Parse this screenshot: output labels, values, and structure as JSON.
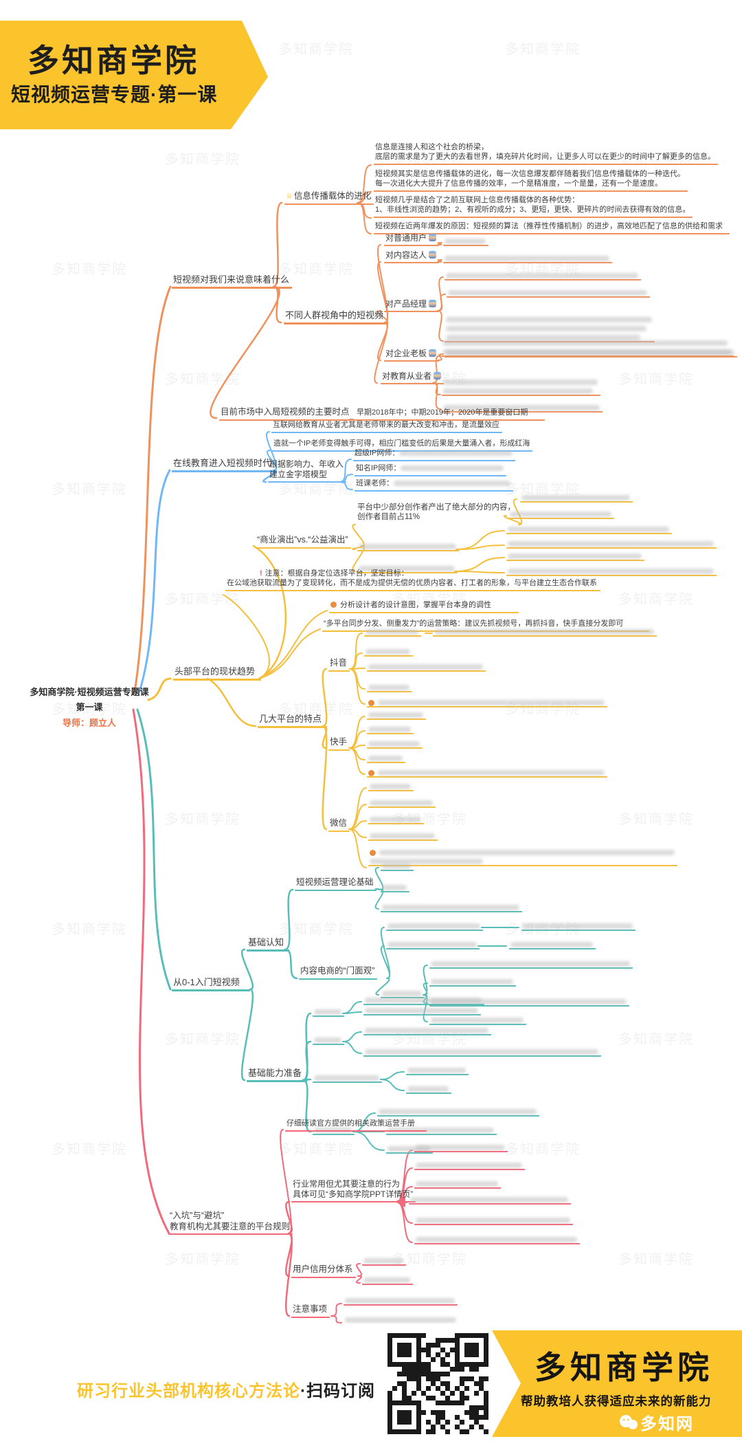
{
  "banner": {
    "title": "多知商学院",
    "subtitle": "短视频运营专题·第一课"
  },
  "watermark_text": "多知商学院",
  "root": {
    "line1": "多知商学院·短视频运营专题课",
    "line2": "第一课",
    "tutor_label": "导师：顾立人"
  },
  "colors": {
    "banner_yellow": "#FBC42D",
    "branch_orange": "#F0915C",
    "branch_blue": "#6FB7F7",
    "branch_yellow": "#F5BF3B",
    "branch_teal": "#57BDB8",
    "branch_pink": "#F1697B",
    "tutor_orange": "#F07040",
    "accent_dot": "#E98C3F",
    "alert_red": "#E8574F",
    "text_dark": "#3D3D3D"
  },
  "nodes": {
    "O0": {
      "text": "短视频对我们来说意味着什么"
    },
    "O1": {
      "text": "信息传播载体的进化",
      "icon": "crown-icon"
    },
    "O1a": {
      "lines": [
        "信息是连接人和这个社会的桥梁，",
        "底层的需求是为了更大的去看世界，填充碎片化时间，让更多人可以在更少的时间中了解更多的信息。"
      ]
    },
    "O1b": {
      "lines": [
        "短视频其实是信息传播载体的进化，每一次信息爆发都伴随着我们信息传播载体的一种迭代。",
        "每一次进化大大提升了信息传播的效率，一个是精准度，一个是量，还有一个是速度。"
      ]
    },
    "O1c": {
      "lines": [
        "短视频几乎是结合了之前互联网上信息传播载体的各种优势：",
        "1、非线性浏览的趋势；2、有视听的成分；3、更短，更快、更碎片的时间去获得有效的信息。"
      ]
    },
    "O1d": {
      "lines": [
        "短视频在近两年爆发的原因：短视频的算法（推荐性传播机制）的进步，高效地匹配了信息的供给和需求"
      ]
    },
    "O2": {
      "text": "不同人群视角中的短视频"
    },
    "O2a": {
      "text": "对普通用户",
      "icon": "avatar-icon"
    },
    "O2b": {
      "text": "对内容达人",
      "icon": "avatar-icon"
    },
    "O2c": {
      "text": "对产品经理",
      "icon": "avatar-icon"
    },
    "O2d": {
      "text": "对企业老板",
      "icon": "avatar-icon"
    },
    "O2e": {
      "text": "对教育从业者",
      "icon": "avatar-icon"
    },
    "O2a1": {
      "blurred": true
    },
    "O2b1": {
      "blurred": true
    },
    "O2c1": {
      "blurred": true
    },
    "O2c2": {
      "blurred": true
    },
    "O2c3": {
      "blurred": true
    },
    "O2d1": {
      "blurred": true
    },
    "O2e1": {
      "blurred": true
    },
    "O2e2": {
      "blurred": true
    },
    "O2e3": {
      "blurred": true
    },
    "O3": {
      "text": "目前市场中入局短视频的主要时点"
    },
    "O3a": {
      "lines": [
        "早期2018年中；中期2019年；2020年是重要窗口期"
      ]
    },
    "B0": {
      "text": "在线教育进入短视频时代"
    },
    "B1": {
      "lines": [
        "互联网给教育从业者尤其是老师带来的最大改变和冲击，是流量效应"
      ]
    },
    "B2": {
      "lines": [
        "造就一个IP老师变得触手可得，相应门槛变低的后果是大量涌入者，形成红海"
      ]
    },
    "B3": {
      "lines": [
        "根据影响力、年收入",
        "建立金字塔模型"
      ]
    },
    "B3a": {
      "text": "超级IP网师：",
      "blurred": true
    },
    "B3b": {
      "text": "知名IP网师：",
      "blurred": true
    },
    "B3c": {
      "text": "班课老师：",
      "blurred": true
    },
    "Y0": {
      "text": "头部平台的现状趋势"
    },
    "Y1": {
      "text": "“商业演出”vs.“公益演出”"
    },
    "Y1a": {
      "lines": [
        "平台中少部分创作者产出了绝大部分的内容，",
        "创作者目前占11%"
      ]
    },
    "Y1a1": {
      "blurred": true
    },
    "Y1a2": {
      "blurred": true
    },
    "Y1b": {
      "blurred": true
    },
    "Y1b1": {
      "blurred": true
    },
    "Y1b2": {
      "blurred": true
    },
    "Y1c": {
      "blurred": true
    },
    "Y1c1": {
      "blurred": true
    },
    "Y1c2": {
      "blurred": true
    },
    "Y2": {
      "lines": [
        "注意：根据自身定位选择平台，坚定目标：",
        "在公域池获取流量为了变现转化，而不是成为提供无偿的优质内容者、打工者的形象，与平台建立生态合作联系"
      ],
      "icon": "alert-icon"
    },
    "Y3": {
      "lines": [
        "分析设计者的设计意图，掌握平台本身的调性"
      ],
      "icon": "dot-icon"
    },
    "Y4": {
      "lines": [
        "“多平台同步分发、侧重发力”的运营策略：建议先抓视频号，再抓抖音，快手直接分发即可"
      ]
    },
    "Y5": {
      "text": "几大平台的特点"
    },
    "Y5a": {
      "text": "抖音"
    },
    "Y5b": {
      "text": "快手"
    },
    "Y5c": {
      "text": "微信"
    },
    "D1L": {
      "blurred": true
    },
    "D1R": {
      "blurred": true
    },
    "D2": {
      "blurred": true
    },
    "D3": {
      "blurred": true
    },
    "D4": {
      "blurred": true
    },
    "D5": {
      "blurred": true,
      "icon": "dot-icon"
    },
    "K1": {
      "blurred": true
    },
    "K2": {
      "blurred": true
    },
    "K3": {
      "blurred": true
    },
    "K4": {
      "blurred": true
    },
    "K5": {
      "blurred": true,
      "icon": "dot-icon"
    },
    "W1": {
      "blurred": true
    },
    "W2": {
      "blurred": true
    },
    "W3": {
      "blurred": true
    },
    "W4": {
      "blurred": true
    },
    "W5": {
      "blurred": true,
      "icon": "dot-icon"
    },
    "T0": {
      "text": "从0-1入门短视频"
    },
    "T1": {
      "text": "基础认知"
    },
    "T1a": {
      "text": "短视频运营理论基础"
    },
    "T1a1": {
      "blurred": true
    },
    "T1a2": {
      "blurred": true
    },
    "T1a3": {
      "blurred": true
    },
    "T1b": {
      "text": "内容电商的“门面观”"
    },
    "T1b1": {
      "blurred": true
    },
    "T1b1R": {
      "blurred": true
    },
    "T1b2": {
      "blurred": true
    },
    "T1b2R": {
      "blurred": true
    },
    "T1bs": {
      "blurred": true
    },
    "T1bs1": {
      "blurred": true
    },
    "T1bs2": {
      "blurred": true
    },
    "T1bs3": {
      "blurred": true
    },
    "T1bs4": {
      "blurred": true
    },
    "T2": {
      "text": "基础能力准备"
    },
    "T2a": {
      "blurred": true
    },
    "T2a1": {
      "blurred": true
    },
    "T2a2": {
      "blurred": true
    },
    "T2b": {
      "blurred": true
    },
    "T2b1": {
      "blurred": true
    },
    "T2b2": {
      "blurred": true
    },
    "T2c": {
      "blurred": true
    },
    "T2c1": {
      "blurred": true
    },
    "T2c2": {
      "blurred": true
    },
    "T2d": {
      "blurred": true
    },
    "T2d1": {
      "blurred": true
    },
    "T2d2": {
      "blurred": true
    },
    "T2d3": {
      "blurred": true
    },
    "P0": {
      "lines": [
        "“入坑”与“避坑”",
        "教育机构尤其要注意的平台规则"
      ]
    },
    "P1": {
      "lines": [
        "仔细研读官方提供的相关政策运营手册"
      ]
    },
    "P2": {
      "lines": [
        "行业常用但尤其要注意的行为",
        "具体可见“多知商学院PPT详情页”"
      ]
    },
    "P2a": {
      "blurred": true
    },
    "P2b": {
      "blurred": true
    },
    "P2c": {
      "blurred": true
    },
    "P2d": {
      "blurred": true
    },
    "P2e1": {
      "blurred": true
    },
    "P2e2": {
      "blurred": true
    },
    "P3": {
      "text": "用户信用分体系"
    },
    "P3a": {
      "blurred": true
    },
    "P3b": {
      "blurred": true
    },
    "P4": {
      "text": "注意事项"
    },
    "P4a": {
      "blurred": true
    },
    "P4b": {
      "blurred": true
    }
  },
  "footer": {
    "tagline_highlight": "研习行业头部机构核心方法论",
    "tagline_suffix": "·扫码订阅",
    "qr_label": "qr-code",
    "brand": "多知商学院",
    "slogan": "帮助教培人获得适应未来的新能力",
    "site_badge": "多知网"
  }
}
